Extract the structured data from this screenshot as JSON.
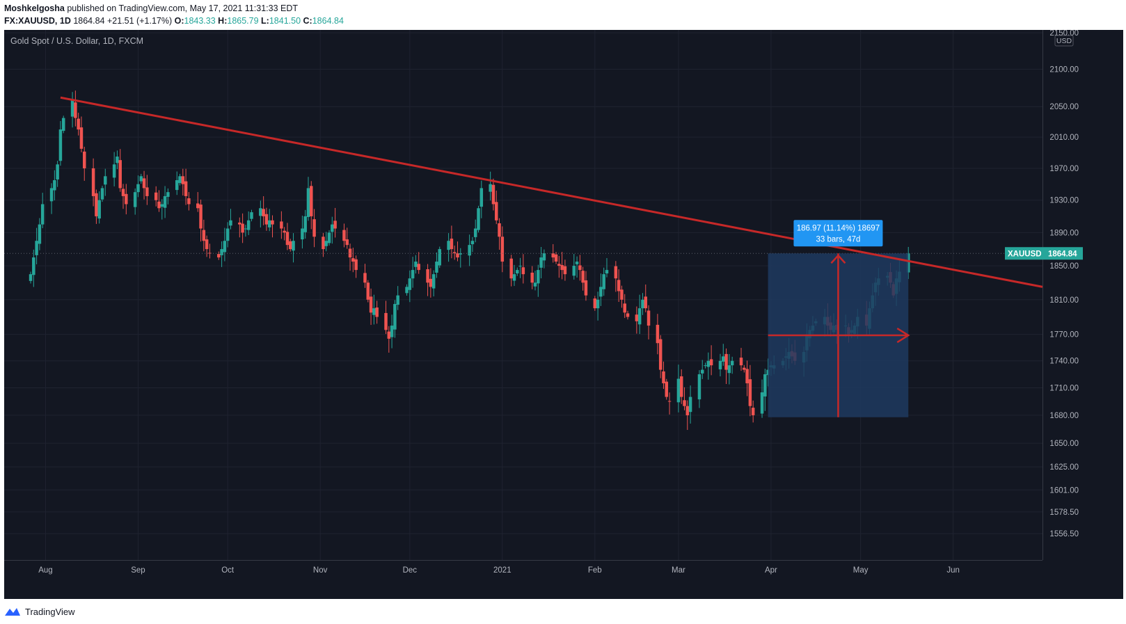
{
  "header": {
    "author": "Moshkelgosha",
    "published": "published on TradingView.com, May 17, 2021 11:31:33 EDT"
  },
  "ohlc": {
    "symbol": "FX:XAUUSD, 1D",
    "last": "1864.84",
    "change": "+21.51 (+1.17%)",
    "o_label": "O:",
    "o": "1843.33",
    "h_label": "H:",
    "h": "1865.79",
    "l_label": "L:",
    "l": "1841.50",
    "c_label": "C:",
    "c": "1864.84"
  },
  "chart": {
    "legend": "Gold Spot / U.S. Dollar, 1D, FXCM",
    "currency": "USD",
    "price_tag_symbol": "XAUUSD",
    "price_tag_value": "1864.84",
    "measure_line1": "186.97 (11.14%) 18697",
    "measure_line2": "33 bars, 47d",
    "colors": {
      "background": "#131722",
      "up": "#26a69a",
      "down": "#ef5350",
      "trendline": "#c62828",
      "measure_box": "#1e3a5f",
      "measure_label": "#2196f3"
    }
  },
  "chart_data": {
    "type": "candlestick",
    "y_ticks": [
      "2150.00",
      "2100.00",
      "2050.00",
      "2010.00",
      "1970.00",
      "1930.00",
      "1890.00",
      "1850.00",
      "1810.00",
      "1770.00",
      "1740.00",
      "1710.00",
      "1680.00",
      "1650.00",
      "1625.00",
      "1601.00",
      "1578.50",
      "1556.50"
    ],
    "y_scale": "log",
    "x_ticks": [
      "Aug",
      "Sep",
      "Oct",
      "Nov",
      "Dec",
      "2021",
      "Feb",
      "Mar",
      "Apr",
      "May",
      "Jun"
    ],
    "date_range": [
      "2020-07-20",
      "2021-05-17"
    ],
    "last_price": 1864.84,
    "trendline": {
      "from": {
        "date": "2020-08-06",
        "price": 2062
      },
      "to_at_right_edge": 1825
    },
    "measure": {
      "from_price": 1677.87,
      "to_price": 1864.84,
      "change": 186.97,
      "percent": 11.14,
      "bars": 33,
      "days": 47
    },
    "candles_close": [
      1840,
      1860,
      1880,
      1900,
      1925,
      1945,
      1955,
      1975,
      2020,
      2035,
      2060,
      2035,
      2020,
      1995,
      1970,
      1935,
      1910,
      1930,
      1945,
      1960,
      1975,
      1985,
      1945,
      1935,
      1925,
      1940,
      1950,
      1960,
      1945,
      1935,
      1930,
      1920,
      1925,
      1935,
      1940,
      1955,
      1960,
      1950,
      1935,
      1925,
      1920,
      1895,
      1880,
      1870,
      1865,
      1860,
      1870,
      1880,
      1895,
      1905,
      1900,
      1890,
      1895,
      1905,
      1915,
      1920,
      1910,
      1900,
      1905,
      1900,
      1895,
      1890,
      1875,
      1870,
      1880,
      1895,
      1910,
      1945,
      1910,
      1885,
      1870,
      1880,
      1890,
      1900,
      1895,
      1880,
      1875,
      1860,
      1855,
      1845,
      1830,
      1810,
      1795,
      1800,
      1790,
      1775,
      1765,
      1780,
      1805,
      1815,
      1825,
      1835,
      1845,
      1855,
      1845,
      1830,
      1825,
      1840,
      1855,
      1870,
      1880,
      1870,
      1865,
      1860,
      1865,
      1875,
      1880,
      1895,
      1920,
      1945,
      1950,
      1925,
      1905,
      1885,
      1855,
      1835,
      1840,
      1845,
      1850,
      1840,
      1830,
      1830,
      1845,
      1860,
      1865,
      1860,
      1855,
      1850,
      1845,
      1840,
      1850,
      1855,
      1845,
      1830,
      1815,
      1800,
      1810,
      1825,
      1840,
      1845,
      1835,
      1820,
      1810,
      1795,
      1790,
      1785,
      1800,
      1810,
      1800,
      1780,
      1760,
      1730,
      1715,
      1700,
      1695,
      1720,
      1700,
      1690,
      1680,
      1700,
      1725,
      1730,
      1735,
      1740,
      1735,
      1740,
      1745,
      1730,
      1735,
      1740,
      1735,
      1730,
      1715,
      1690,
      1680,
      1705,
      1725,
      1730,
      1735,
      1735,
      1740,
      1745,
      1750,
      1745,
      1740,
      1750,
      1770,
      1775,
      1780,
      1785,
      1790,
      1780,
      1775,
      1780,
      1775,
      1780,
      1770,
      1775,
      1780,
      1790,
      1780,
      1800,
      1815,
      1830,
      1835,
      1838,
      1830,
      1815,
      1835,
      1843,
      1864.84
    ]
  }
}
